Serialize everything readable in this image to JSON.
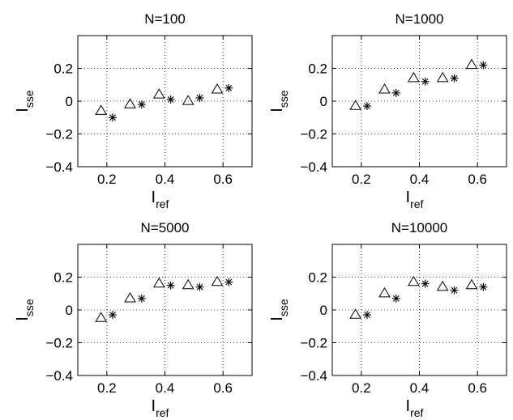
{
  "chart_data": [
    {
      "type": "scatter",
      "title": "N=100",
      "xlabel": {
        "main": "I",
        "sub": "ref"
      },
      "ylabel": {
        "main": "I",
        "sub": "sse"
      },
      "xlim": [
        0.1,
        0.7
      ],
      "ylim": [
        -0.4,
        0.4
      ],
      "xticks": [
        0.2,
        0.4,
        0.6
      ],
      "yticks": [
        -0.4,
        -0.2,
        0,
        0.2
      ],
      "grid": true,
      "series": [
        {
          "marker": "triangle",
          "x": [
            0.18,
            0.28,
            0.38,
            0.48,
            0.58
          ],
          "y": [
            -0.06,
            -0.02,
            0.04,
            0.0,
            0.07
          ]
        },
        {
          "marker": "star",
          "x": [
            0.22,
            0.32,
            0.42,
            0.52,
            0.62
          ],
          "y": [
            -0.1,
            -0.02,
            0.01,
            0.02,
            0.08
          ]
        }
      ]
    },
    {
      "type": "scatter",
      "title": "N=1000",
      "xlabel": {
        "main": "I",
        "sub": "ref"
      },
      "ylabel": {
        "main": "I",
        "sub": "sse"
      },
      "xlim": [
        0.1,
        0.7
      ],
      "ylim": [
        -0.4,
        0.4
      ],
      "xticks": [
        0.2,
        0.4,
        0.6
      ],
      "yticks": [
        -0.4,
        -0.2,
        0,
        0.2
      ],
      "grid": true,
      "series": [
        {
          "marker": "triangle",
          "x": [
            0.18,
            0.28,
            0.38,
            0.48,
            0.58
          ],
          "y": [
            -0.03,
            0.07,
            0.14,
            0.14,
            0.22
          ]
        },
        {
          "marker": "star",
          "x": [
            0.22,
            0.32,
            0.42,
            0.52,
            0.62
          ],
          "y": [
            -0.03,
            0.05,
            0.12,
            0.14,
            0.22
          ]
        }
      ]
    },
    {
      "type": "scatter",
      "title": "N=5000",
      "xlabel": {
        "main": "I",
        "sub": "ref"
      },
      "ylabel": {
        "main": "I",
        "sub": "sse"
      },
      "xlim": [
        0.1,
        0.7
      ],
      "ylim": [
        -0.4,
        0.4
      ],
      "xticks": [
        0.2,
        0.4,
        0.6
      ],
      "yticks": [
        -0.4,
        -0.2,
        0,
        0.2
      ],
      "grid": true,
      "series": [
        {
          "marker": "triangle",
          "x": [
            0.18,
            0.28,
            0.38,
            0.48,
            0.58
          ],
          "y": [
            -0.05,
            0.07,
            0.16,
            0.15,
            0.17
          ]
        },
        {
          "marker": "star",
          "x": [
            0.22,
            0.32,
            0.42,
            0.52,
            0.62
          ],
          "y": [
            -0.03,
            0.07,
            0.15,
            0.14,
            0.17
          ]
        }
      ]
    },
    {
      "type": "scatter",
      "title": "N=10000",
      "xlabel": {
        "main": "I",
        "sub": "ref"
      },
      "ylabel": {
        "main": "I",
        "sub": "sse"
      },
      "xlim": [
        0.1,
        0.7
      ],
      "ylim": [
        -0.4,
        0.4
      ],
      "xticks": [
        0.2,
        0.4,
        0.6
      ],
      "yticks": [
        -0.4,
        -0.2,
        0,
        0.2
      ],
      "grid": true,
      "series": [
        {
          "marker": "triangle",
          "x": [
            0.18,
            0.28,
            0.38,
            0.48,
            0.58
          ],
          "y": [
            -0.03,
            0.1,
            0.17,
            0.14,
            0.15
          ]
        },
        {
          "marker": "star",
          "x": [
            0.22,
            0.32,
            0.42,
            0.52,
            0.62
          ],
          "y": [
            -0.03,
            0.07,
            0.16,
            0.12,
            0.14
          ]
        }
      ]
    }
  ]
}
